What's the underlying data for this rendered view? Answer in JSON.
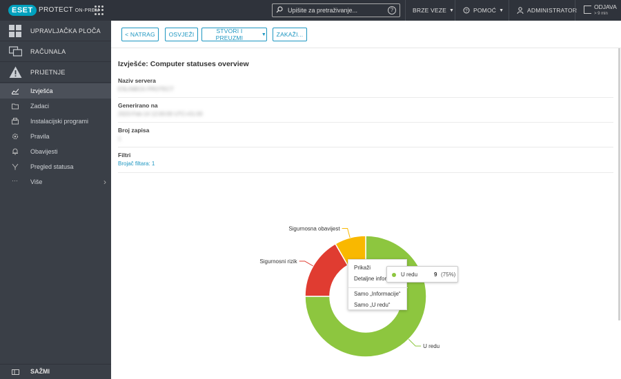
{
  "topbar": {
    "logo": "eset",
    "product": "PROTECT",
    "edition": "ON-PREM",
    "search_placeholder": "Upišite za pretraživanje...",
    "quick_links": "BRZE VEZE",
    "help": "POMOĆ",
    "user": "ADMINISTRATOR",
    "logout": "ODJAVA",
    "session": "> 9 min"
  },
  "sidebar": {
    "dashboard": "UPRAVLJAČKA PLOČA",
    "computers": "RAČUNALA",
    "threats": "PRIJETNJE",
    "items": [
      {
        "label": "Izvješća",
        "icon": "reports-icon",
        "active": true
      },
      {
        "label": "Zadaci",
        "icon": "tasks-icon"
      },
      {
        "label": "Instalacijski programi",
        "icon": "installers-icon"
      },
      {
        "label": "Pravila",
        "icon": "policies-icon"
      },
      {
        "label": "Obavijesti",
        "icon": "notifications-icon"
      },
      {
        "label": "Pregled statusa",
        "icon": "status-overview-icon"
      },
      {
        "label": "Više",
        "icon": "more-icon"
      }
    ],
    "collapse": "SAŽMI"
  },
  "toolbar": {
    "back": "< NATRAG",
    "refresh": "OSVJEŽI",
    "create_download": "STVORI I PREUZMI",
    "schedule": "ZAKAŽI..."
  },
  "report": {
    "title": "Izvješće: Computer statuses overview",
    "server_name_label": "Naziv servera",
    "server_name_value": "ESLINBOX-PROTECT",
    "generated_label": "Generirano na",
    "generated_value": "2023-Feb-14 12:00:00 UTC+01:00",
    "record_count_label": "Broj zapisa",
    "record_count_value": "1",
    "filters_label": "Filtri",
    "filters_link": "Brojač filtara: 1"
  },
  "chart_data": {
    "type": "pie",
    "donut": true,
    "categories": [
      "U redu",
      "Sigurnosni rizik",
      "Sigurnosna obavijest"
    ],
    "values": [
      9,
      2,
      1
    ],
    "colors": [
      "#8dc63f",
      "#e03c31",
      "#f9b800"
    ],
    "title": "",
    "tooltip": {
      "name": "U redu",
      "value": "9",
      "percent": "(75%)"
    }
  },
  "context_menu": {
    "items": [
      "Prikaži",
      "Detaljne informacije",
      "Samo „Informacije“",
      "Samo „U redu“"
    ]
  }
}
